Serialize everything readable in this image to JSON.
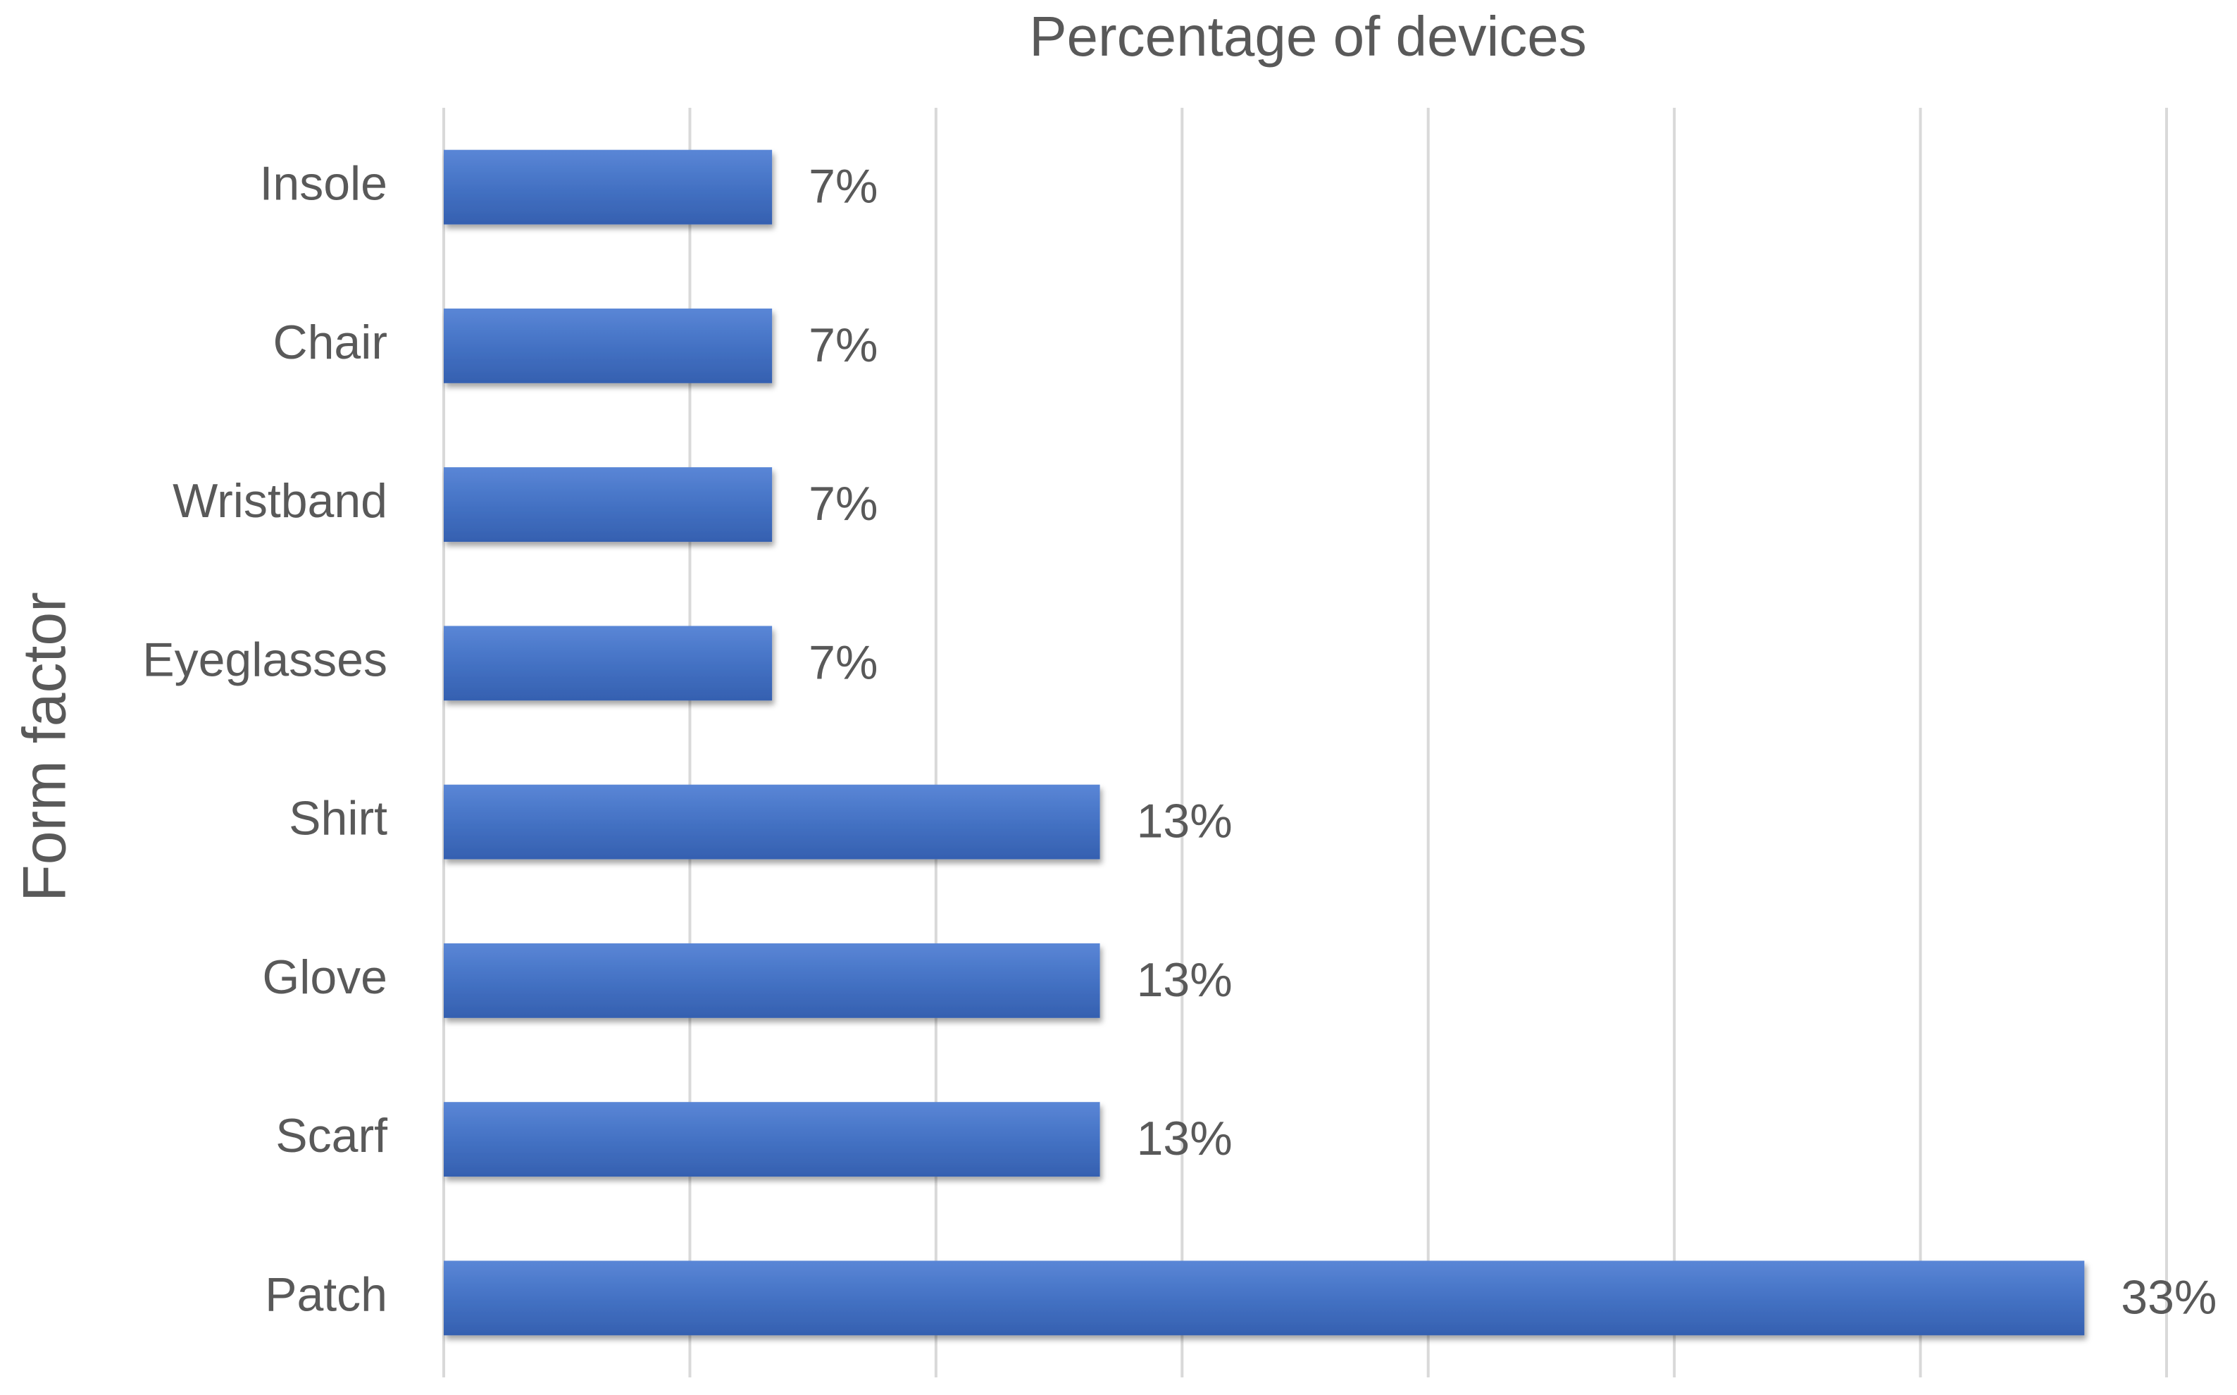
{
  "chart_data": {
    "type": "bar",
    "orientation": "horizontal",
    "title": "Percentage of devices",
    "y_label": "Form factor",
    "categories": [
      "Insole",
      "Chair",
      "Wristband",
      "Eyeglasses",
      "Shirt",
      "Glove",
      "Scarf",
      "Patch"
    ],
    "values": [
      6.67,
      6.67,
      6.67,
      6.67,
      13.33,
      13.33,
      13.33,
      33.33
    ],
    "value_labels": [
      "7%",
      "7%",
      "7%",
      "7%",
      "13%",
      "13%",
      "13%",
      "33%"
    ],
    "color": "#4472c4",
    "xlim": [
      0,
      35
    ],
    "xticks": [
      0,
      5,
      10,
      15,
      20,
      25,
      30,
      35
    ],
    "grid": true
  }
}
